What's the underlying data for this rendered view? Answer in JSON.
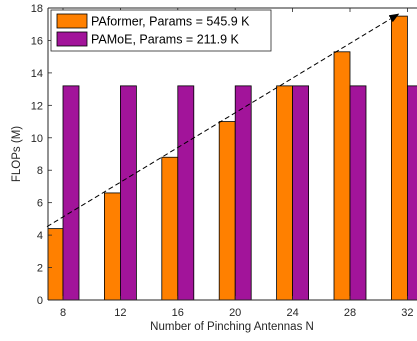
{
  "chart_data": {
    "type": "bar",
    "title": "",
    "xlabel": "Number of Pinching Antennas N",
    "ylabel": "FLOPs (M)",
    "categories": [
      "8",
      "12",
      "16",
      "20",
      "24",
      "28",
      "32"
    ],
    "ylim": [
      0,
      18
    ],
    "yticks": [
      0,
      2,
      4,
      6,
      8,
      10,
      12,
      14,
      16,
      18
    ],
    "series": [
      {
        "name": "PAformer, Params = 545.9 K",
        "color": "#FF8000",
        "values": [
          4.4,
          6.6,
          8.8,
          11.0,
          13.2,
          15.3,
          17.5
        ]
      },
      {
        "name": "PAMoE, Params = 211.9 K",
        "color": "#A2149A",
        "values": [
          13.2,
          13.2,
          13.2,
          13.2,
          13.2,
          13.2,
          13.2
        ]
      }
    ],
    "trend_arrow": {
      "series": "PAformer, Params = 545.9 K",
      "style": "dashed",
      "from": {
        "x": "8",
        "y": 4.4
      },
      "to": {
        "x": "32",
        "y": 17.5
      }
    },
    "legend": "top-left",
    "grid": false
  }
}
